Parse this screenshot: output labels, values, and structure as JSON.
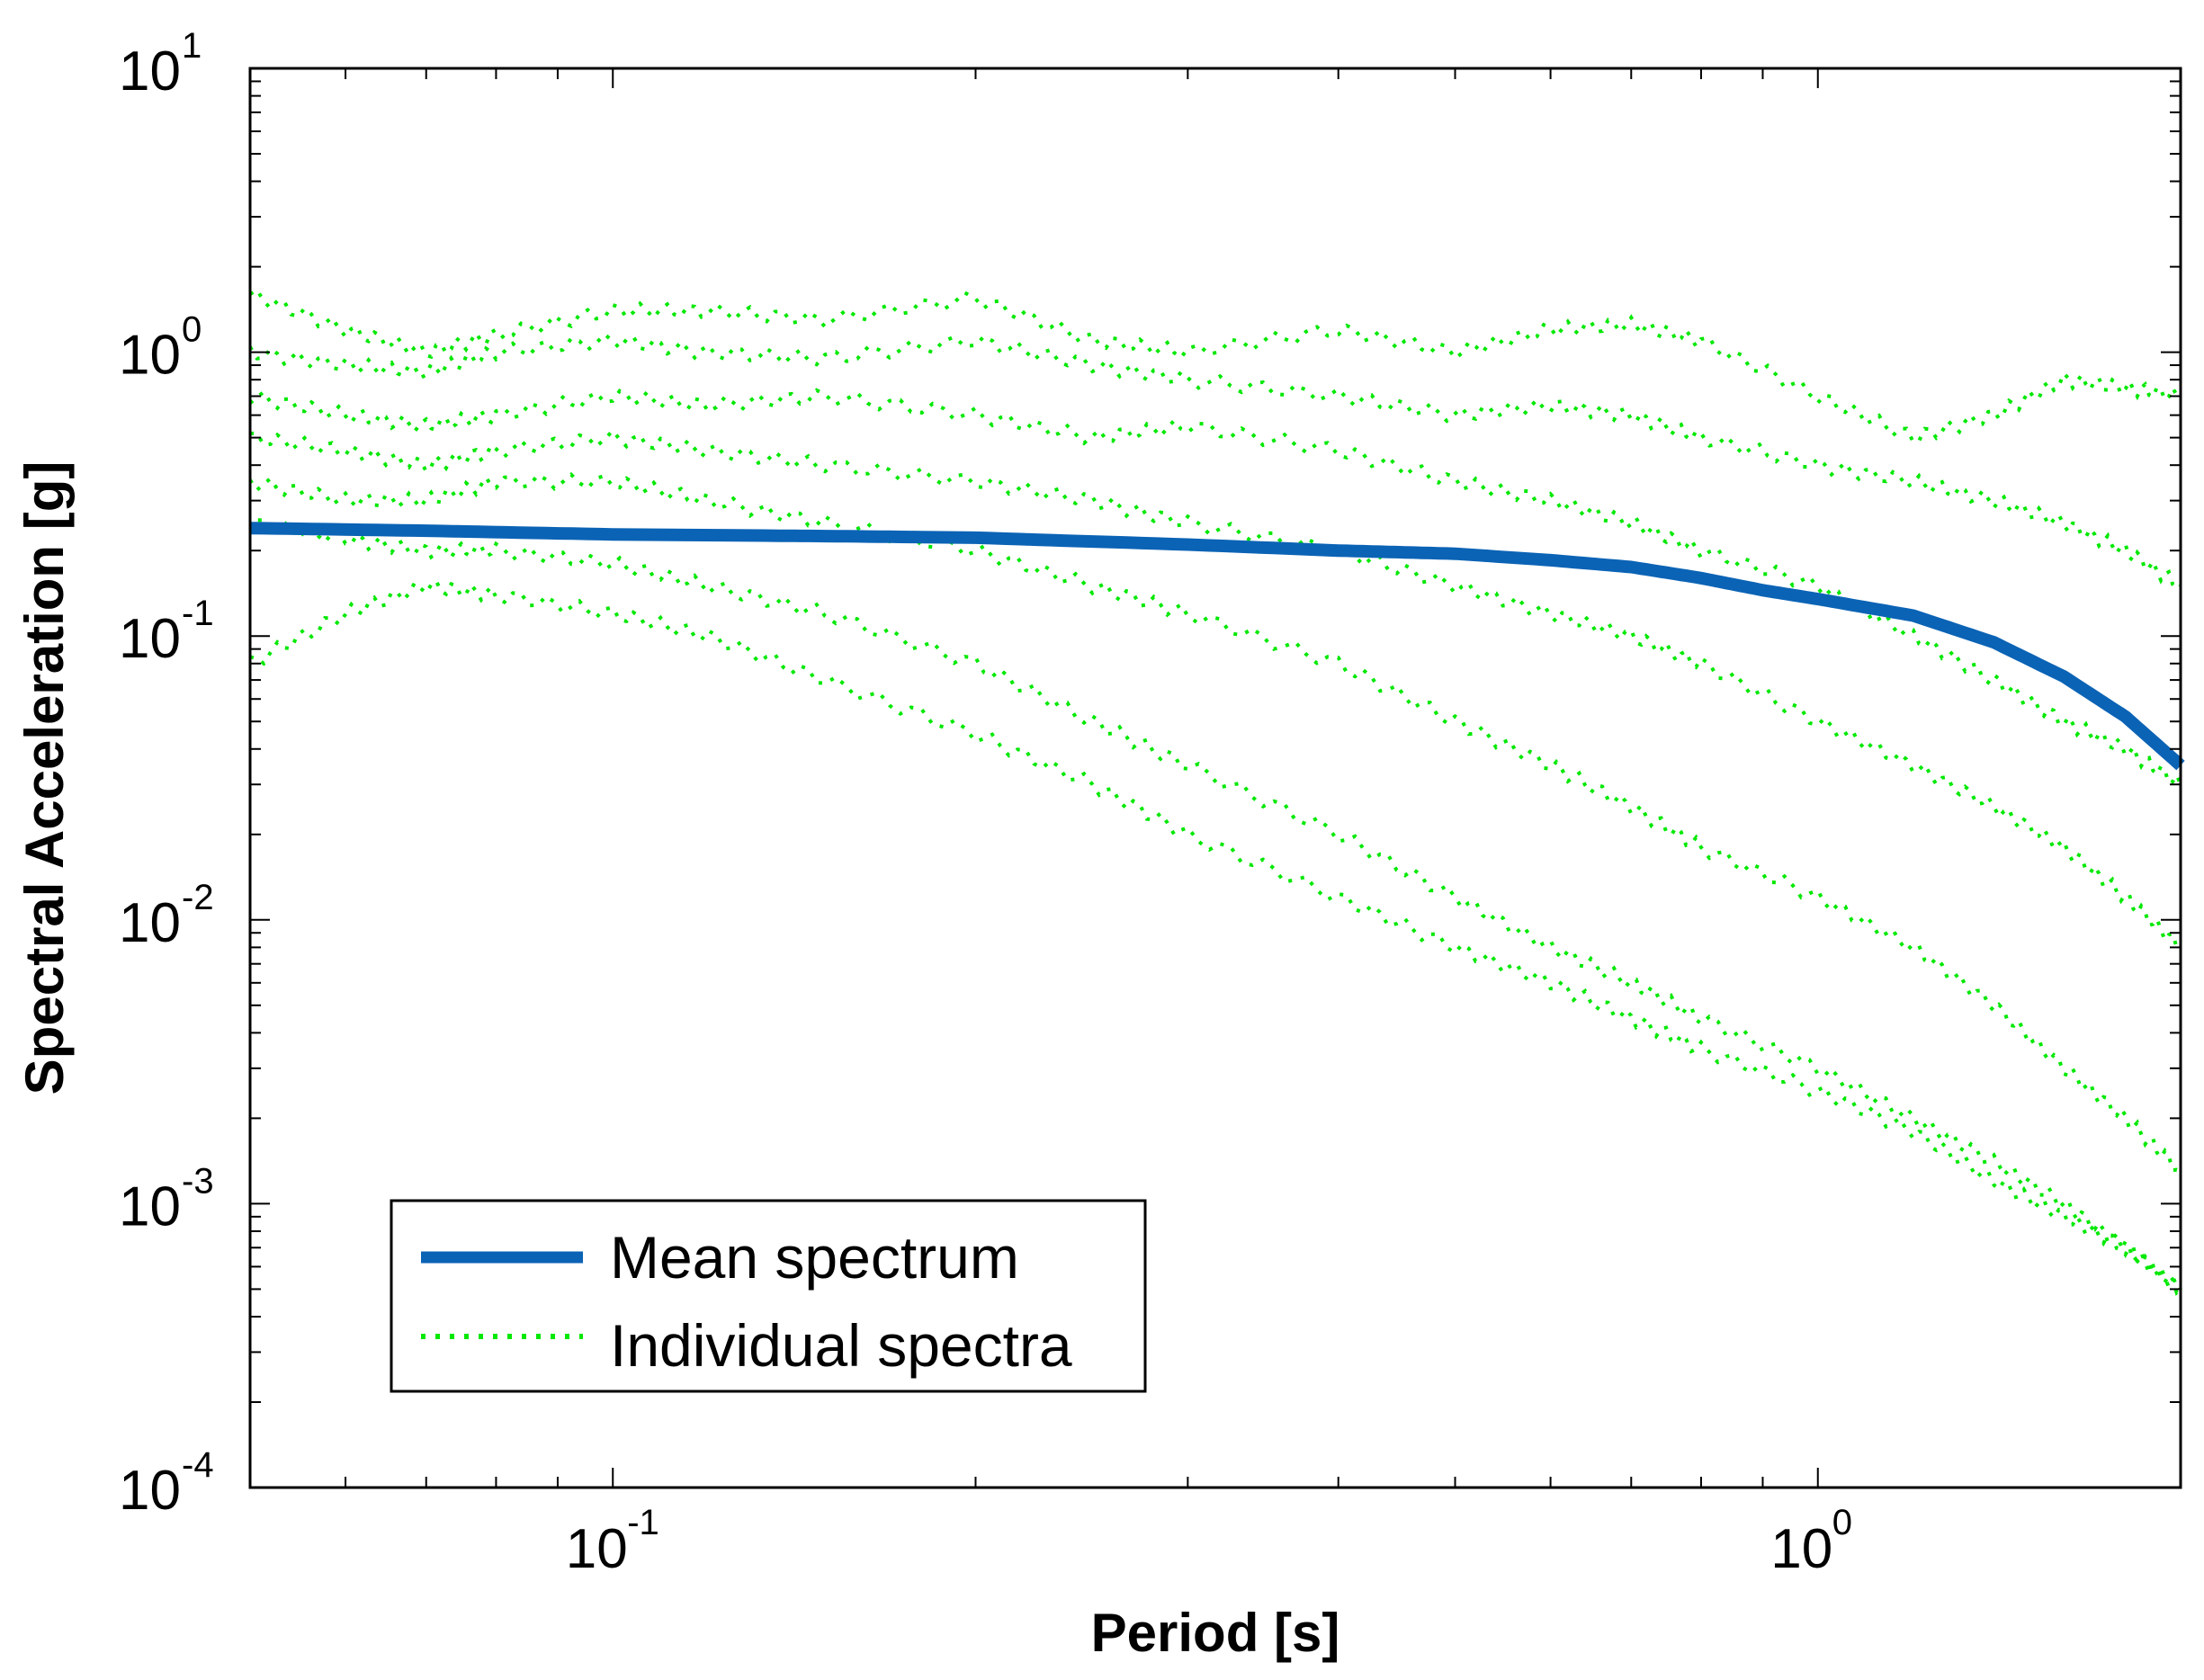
{
  "chart_data": {
    "type": "line",
    "title": "",
    "xlabel": "Period [s]",
    "ylabel": "Spectral Acceleration [g]",
    "xscale": "log",
    "yscale": "log",
    "xlim": [
      0.05,
      2.0
    ],
    "ylim": [
      0.0001,
      10
    ],
    "x_ticks": [
      {
        "value": 0.1,
        "base": "10",
        "exp": "-1"
      },
      {
        "value": 1,
        "base": "10",
        "exp": "0"
      }
    ],
    "y_ticks": [
      {
        "value": 10,
        "base": "10",
        "exp": "1"
      },
      {
        "value": 1,
        "base": "10",
        "exp": "0"
      },
      {
        "value": 0.1,
        "base": "10",
        "exp": "-1"
      },
      {
        "value": 0.01,
        "base": "10",
        "exp": "-2"
      },
      {
        "value": 0.001,
        "base": "10",
        "exp": "-3"
      },
      {
        "value": 0.0001,
        "base": "10",
        "exp": "-4"
      }
    ],
    "legend_position": "bottom-left",
    "series": [
      {
        "name": "Mean spectrum",
        "style": "solid",
        "color": "#0b63b5",
        "x": [
          0.05,
          0.07,
          0.1,
          0.15,
          0.2,
          0.3,
          0.4,
          0.5,
          0.6,
          0.7,
          0.8,
          0.9,
          1.0,
          1.2,
          1.4,
          1.6,
          1.8,
          2.0
        ],
        "y": [
          0.24,
          0.235,
          0.228,
          0.225,
          0.222,
          0.21,
          0.2,
          0.195,
          0.185,
          0.175,
          0.16,
          0.145,
          0.135,
          0.118,
          0.095,
          0.072,
          0.052,
          0.035
        ]
      },
      {
        "name": "Individual spectra",
        "style": "dotted",
        "color": "#00e800",
        "spectra": [
          {
            "x": [
              0.05,
              0.06,
              0.07,
              0.08,
              0.1,
              0.12,
              0.15,
              0.2,
              0.25,
              0.3,
              0.4,
              0.5,
              0.6,
              0.7,
              0.8,
              1.0,
              1.2,
              1.4,
              1.6,
              1.8,
              2.0
            ],
            "y": [
              1.6,
              1.2,
              1.0,
              1.15,
              1.4,
              1.4,
              1.3,
              1.55,
              1.1,
              1.0,
              1.2,
              1.0,
              1.2,
              1.25,
              1.1,
              0.7,
              0.5,
              0.6,
              0.8,
              0.75,
              0.7
            ]
          },
          {
            "x": [
              0.05,
              0.06,
              0.07,
              0.08,
              0.1,
              0.12,
              0.15,
              0.2,
              0.25,
              0.3,
              0.4,
              0.5,
              0.6,
              0.7,
              0.8,
              1.0,
              1.2,
              1.4,
              1.6,
              1.8,
              2.0
            ],
            "y": [
              1.0,
              0.9,
              0.85,
              1.0,
              1.1,
              1.0,
              0.95,
              1.1,
              0.9,
              0.8,
              0.7,
              0.6,
              0.65,
              0.6,
              0.5,
              0.4,
              0.35,
              0.3,
              0.25,
              0.2,
              0.15
            ]
          },
          {
            "x": [
              0.05,
              0.06,
              0.07,
              0.08,
              0.1,
              0.12,
              0.15,
              0.2,
              0.25,
              0.3,
              0.4,
              0.5,
              0.6,
              0.7,
              0.8,
              1.0,
              1.2,
              1.4,
              1.6,
              1.8,
              2.0
            ],
            "y": [
              0.7,
              0.6,
              0.55,
              0.6,
              0.7,
              0.65,
              0.7,
              0.6,
              0.5,
              0.55,
              0.45,
              0.35,
              0.3,
              0.25,
              0.2,
              0.15,
              0.1,
              0.07,
              0.05,
              0.04,
              0.03
            ]
          },
          {
            "x": [
              0.05,
              0.06,
              0.07,
              0.08,
              0.1,
              0.12,
              0.15,
              0.2,
              0.25,
              0.3,
              0.4,
              0.5,
              0.6,
              0.7,
              0.8,
              1.0,
              1.2,
              1.4,
              1.6,
              1.8,
              2.0
            ],
            "y": [
              0.5,
              0.45,
              0.4,
              0.45,
              0.5,
              0.45,
              0.4,
              0.35,
              0.3,
              0.25,
              0.2,
              0.15,
              0.12,
              0.1,
              0.08,
              0.05,
              0.035,
              0.025,
              0.018,
              0.012,
              0.008
            ]
          },
          {
            "x": [
              0.05,
              0.06,
              0.07,
              0.08,
              0.1,
              0.12,
              0.15,
              0.2,
              0.25,
              0.3,
              0.4,
              0.5,
              0.6,
              0.7,
              0.8,
              1.0,
              1.2,
              1.4,
              1.6,
              1.8,
              2.0
            ],
            "y": [
              0.35,
              0.3,
              0.3,
              0.35,
              0.35,
              0.3,
              0.25,
              0.2,
              0.15,
              0.12,
              0.08,
              0.05,
              0.035,
              0.025,
              0.018,
              0.012,
              0.008,
              0.005,
              0.003,
              0.002,
              0.0013
            ]
          },
          {
            "x": [
              0.05,
              0.06,
              0.07,
              0.08,
              0.1,
              0.12,
              0.15,
              0.2,
              0.25,
              0.3,
              0.4,
              0.5,
              0.6,
              0.7,
              0.8,
              1.0,
              1.2,
              1.4,
              1.6,
              1.8,
              2.0
            ],
            "y": [
              0.25,
              0.22,
              0.2,
              0.2,
              0.18,
              0.15,
              0.12,
              0.08,
              0.05,
              0.035,
              0.02,
              0.012,
              0.008,
              0.006,
              0.0045,
              0.003,
              0.002,
              0.0014,
              0.001,
              0.0007,
              0.0005
            ]
          },
          {
            "x": [
              0.05,
              0.06,
              0.07,
              0.08,
              0.1,
              0.12,
              0.15,
              0.2,
              0.25,
              0.3,
              0.4,
              0.5,
              0.6,
              0.7,
              0.8,
              1.0,
              1.2,
              1.4,
              1.6,
              1.8,
              2.0
            ],
            "y": [
              0.08,
              0.12,
              0.15,
              0.14,
              0.12,
              0.1,
              0.07,
              0.045,
              0.03,
              0.02,
              0.012,
              0.008,
              0.006,
              0.0045,
              0.0035,
              0.0025,
              0.0018,
              0.0012,
              0.0009,
              0.0007,
              0.0005
            ]
          }
        ]
      }
    ]
  }
}
